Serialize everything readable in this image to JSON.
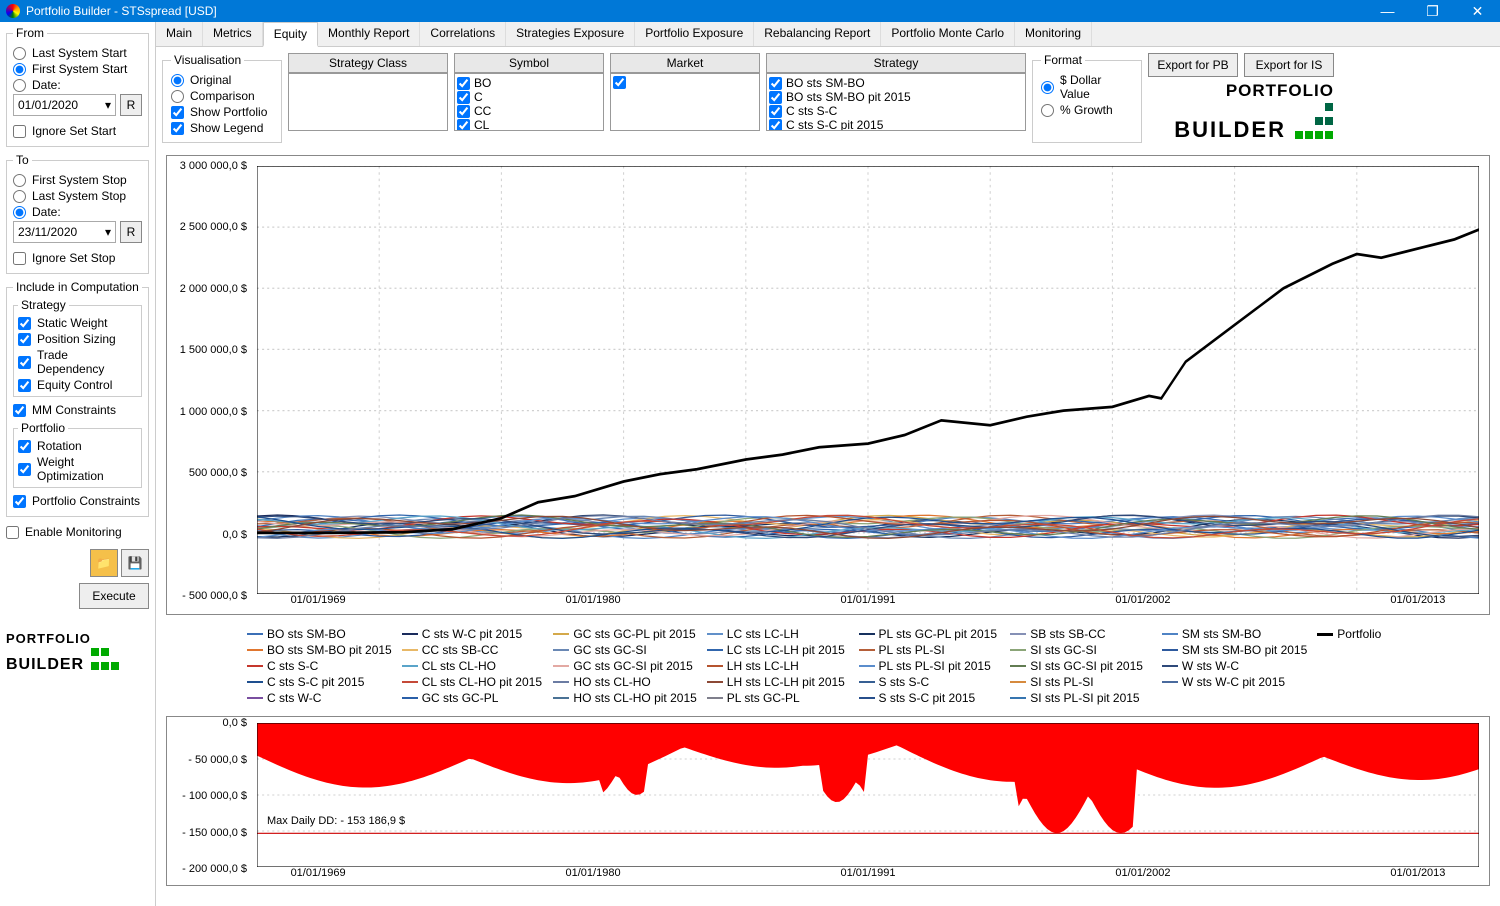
{
  "window": {
    "title": "Portfolio Builder - STSspread [USD]"
  },
  "sidebar": {
    "from": {
      "legend": "From",
      "options": [
        "Last System Start",
        "First System Start",
        "Date:"
      ],
      "selected": 1,
      "date": "01/01/2020",
      "ignore": "Ignore Set Start"
    },
    "to": {
      "legend": "To",
      "options": [
        "First System Stop",
        "Last System Stop",
        "Date:"
      ],
      "selected": 2,
      "date": "23/11/2020",
      "ignore": "Ignore Set Stop"
    },
    "include": {
      "legend": "Include in Computation",
      "strategy_legend": "Strategy",
      "strategy_opts": [
        "Static Weight",
        "Position Sizing",
        "Trade Dependency",
        "Equity Control"
      ],
      "mm": "MM Constraints",
      "portfolio_legend": "Portfolio",
      "portfolio_opts": [
        "Rotation",
        "Weight Optimization"
      ],
      "pc": "Portfolio Constraints"
    },
    "enable_monitoring": "Enable Monitoring",
    "execute": "Execute",
    "r_label": "R"
  },
  "tabs": [
    "Main",
    "Metrics",
    "Equity",
    "Monthly Report",
    "Correlations",
    "Strategies Exposure",
    "Portfolio Exposure",
    "Rebalancing Report",
    "Portfolio Monte Carlo",
    "Monitoring"
  ],
  "active_tab": 2,
  "toolbar": {
    "vis_legend": "Visualisation",
    "vis_opts": [
      "Original",
      "Comparison",
      "Show Portfolio",
      "Show Legend"
    ],
    "vis_types": [
      "radio",
      "radio",
      "check",
      "check"
    ],
    "vis_checked": [
      true,
      false,
      true,
      true
    ],
    "columns": [
      "Strategy Class",
      "Symbol",
      "Market",
      "Strategy"
    ],
    "symbol_list": [
      "BO",
      "C",
      "CC",
      "CL"
    ],
    "strategy_list": [
      "BO sts SM-BO",
      "BO sts SM-BO pit 2015",
      "C sts S-C",
      "C sts S-C pit 2015"
    ],
    "format_legend": "Format",
    "format_opts": [
      "$ Dollar Value",
      "% Growth"
    ],
    "export_pb": "Export for PB",
    "export_is": "Export for IS"
  },
  "logo": {
    "line1": "PORTFOLIO",
    "line2": "BUILDER"
  },
  "equity_chart": {
    "type": "line",
    "ylim": [
      -500000,
      3000000
    ],
    "ytick_labels": [
      "- 500 000,0 $",
      "0,0 $",
      "500 000,0 $",
      "1 000 000,0 $",
      "1 500 000,0 $",
      "2 000 000,0 $",
      "2 500 000,0 $",
      "3 000 000,0 $"
    ],
    "xtick_labels": [
      "01/01/1969",
      "01/01/1980",
      "01/01/1991",
      "01/01/2002",
      "01/01/2013"
    ],
    "portfolio_color": "#000000",
    "portfolio_points": [
      [
        0.0,
        0
      ],
      [
        0.06,
        0
      ],
      [
        0.12,
        5000
      ],
      [
        0.16,
        30000
      ],
      [
        0.2,
        120000
      ],
      [
        0.23,
        250000
      ],
      [
        0.26,
        300000
      ],
      [
        0.3,
        420000
      ],
      [
        0.33,
        480000
      ],
      [
        0.36,
        520000
      ],
      [
        0.4,
        600000
      ],
      [
        0.43,
        640000
      ],
      [
        0.46,
        700000
      ],
      [
        0.5,
        730000
      ],
      [
        0.53,
        800000
      ],
      [
        0.56,
        920000
      ],
      [
        0.6,
        880000
      ],
      [
        0.63,
        950000
      ],
      [
        0.66,
        1000000
      ],
      [
        0.7,
        1030000
      ],
      [
        0.73,
        1120000
      ],
      [
        0.74,
        1100000
      ],
      [
        0.76,
        1400000
      ],
      [
        0.78,
        1550000
      ],
      [
        0.8,
        1700000
      ],
      [
        0.82,
        1850000
      ],
      [
        0.84,
        2000000
      ],
      [
        0.86,
        2100000
      ],
      [
        0.88,
        2200000
      ],
      [
        0.9,
        2280000
      ],
      [
        0.92,
        2250000
      ],
      [
        0.94,
        2300000
      ],
      [
        0.96,
        2350000
      ],
      [
        0.98,
        2400000
      ],
      [
        1.0,
        2480000
      ]
    ],
    "strategy_band": {
      "y_center": 50000,
      "y_range": 120000
    },
    "grid_color": "#d0d0d0",
    "background": "#ffffff"
  },
  "dd_chart": {
    "type": "area",
    "ylim": [
      -200000,
      0
    ],
    "ytick_labels": [
      "- 200 000,0 $",
      "- 150 000,0 $",
      "- 100 000,0 $",
      "- 50 000,0 $",
      "0,0 $"
    ],
    "xtick_labels": [
      "01/01/1969",
      "01/01/1980",
      "01/01/1991",
      "01/01/2002",
      "01/01/2013"
    ],
    "max_dd_label": "Max Daily DD: - 153 186,9 $",
    "max_dd_value": -153187,
    "fill_color": "#ff0000",
    "line_color": "#cc0000",
    "grid_color": "#d0d0d0"
  },
  "legend": {
    "items": [
      {
        "l": "BO sts SM-BO",
        "c": "#3b6fb6"
      },
      {
        "l": "C sts W-C pit 2015",
        "c": "#1a2b5c"
      },
      {
        "l": "GC sts GC-PL pit 2015",
        "c": "#d4a94a"
      },
      {
        "l": "LC sts LC-LH",
        "c": "#6190c9"
      },
      {
        "l": "PL sts GC-PL pit 2015",
        "c": "#17315e"
      },
      {
        "l": "SB sts SB-CC",
        "c": "#8590b5"
      },
      {
        "l": "SM sts SM-BO",
        "c": "#4f83c4"
      },
      {
        "l": "Portfolio",
        "c": "#000000"
      },
      {
        "l": "BO sts SM-BO pit 2015",
        "c": "#e0762f"
      },
      {
        "l": "CC sts SB-CC",
        "c": "#e8b867"
      },
      {
        "l": "GC sts GC-SI",
        "c": "#6a88b4"
      },
      {
        "l": "LC sts LC-LH pit 2015",
        "c": "#3166ad"
      },
      {
        "l": "PL sts PL-SI",
        "c": "#b55f39"
      },
      {
        "l": "SI sts GC-SI",
        "c": "#8ba578"
      },
      {
        "l": "SM sts SM-BO pit 2015",
        "c": "#2e5a9e"
      },
      {
        "l": "",
        "c": ""
      },
      {
        "l": "C sts S-C",
        "c": "#c5372d"
      },
      {
        "l": "CL sts CL-HO",
        "c": "#5aa4c9"
      },
      {
        "l": "GC sts GC-SI pit 2015",
        "c": "#e3a9a3"
      },
      {
        "l": "LH sts LC-LH",
        "c": "#b5542f"
      },
      {
        "l": "PL sts PL-SI pit 2015",
        "c": "#5b8dcc"
      },
      {
        "l": "SI sts GC-SI pit 2015",
        "c": "#627c52"
      },
      {
        "l": "W sts W-C",
        "c": "#2f4a7a"
      },
      {
        "l": "",
        "c": ""
      },
      {
        "l": "C sts S-C pit 2015",
        "c": "#1e4f8f"
      },
      {
        "l": "CL sts CL-HO pit 2015",
        "c": "#c54a38"
      },
      {
        "l": "HO sts CL-HO",
        "c": "#6b7ca3"
      },
      {
        "l": "LH sts LC-LH pit 2015",
        "c": "#8c4835"
      },
      {
        "l": "S sts S-C",
        "c": "#365f93"
      },
      {
        "l": "SI sts PL-SI",
        "c": "#d68a3e"
      },
      {
        "l": "W sts W-C pit 2015",
        "c": "#4a6a9e"
      },
      {
        "l": "",
        "c": ""
      },
      {
        "l": "C sts W-C",
        "c": "#7a4fa0"
      },
      {
        "l": "GC sts GC-PL",
        "c": "#2a5fa8"
      },
      {
        "l": "HO sts CL-HO pit 2015",
        "c": "#4a7295"
      },
      {
        "l": "PL sts GC-PL",
        "c": "#7f7f8c"
      },
      {
        "l": "S sts S-C pit 2015",
        "c": "#274f8c"
      },
      {
        "l": "SI sts PL-SI pit 2015",
        "c": "#3675b0"
      },
      {
        "l": "",
        "c": ""
      },
      {
        "l": "",
        "c": ""
      }
    ]
  }
}
